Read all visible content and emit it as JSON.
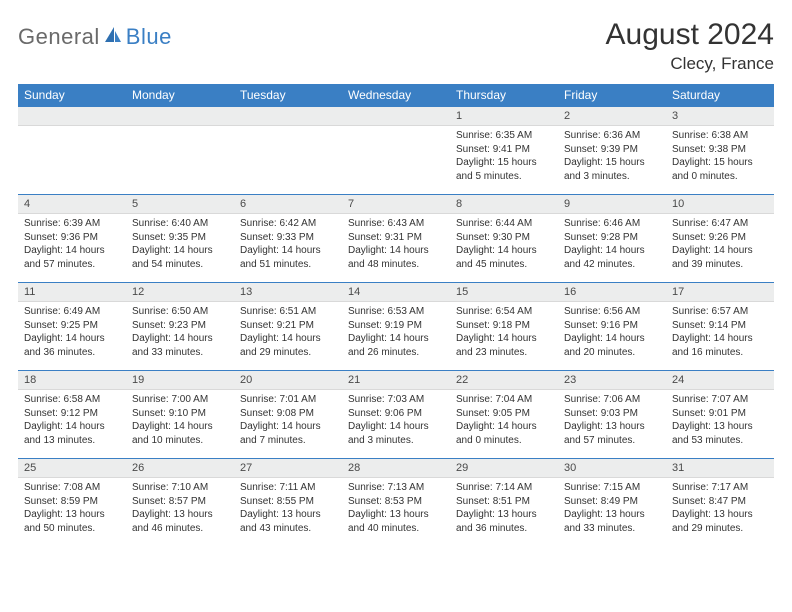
{
  "logo": {
    "part1": "General",
    "part2": "Blue"
  },
  "title": "August 2024",
  "location": "Clecy, France",
  "colors": {
    "accent": "#3a7fc4",
    "header_text": "#ffffff",
    "daynum_bg": "#eceded",
    "body_text": "#333333",
    "logo_gray": "#6a6a6a"
  },
  "day_names": [
    "Sunday",
    "Monday",
    "Tuesday",
    "Wednesday",
    "Thursday",
    "Friday",
    "Saturday"
  ],
  "weeks": [
    [
      {
        "n": "",
        "sr": "",
        "ss": "",
        "dl": ""
      },
      {
        "n": "",
        "sr": "",
        "ss": "",
        "dl": ""
      },
      {
        "n": "",
        "sr": "",
        "ss": "",
        "dl": ""
      },
      {
        "n": "",
        "sr": "",
        "ss": "",
        "dl": ""
      },
      {
        "n": "1",
        "sr": "6:35 AM",
        "ss": "9:41 PM",
        "dl": "15 hours and 5 minutes."
      },
      {
        "n": "2",
        "sr": "6:36 AM",
        "ss": "9:39 PM",
        "dl": "15 hours and 3 minutes."
      },
      {
        "n": "3",
        "sr": "6:38 AM",
        "ss": "9:38 PM",
        "dl": "15 hours and 0 minutes."
      }
    ],
    [
      {
        "n": "4",
        "sr": "6:39 AM",
        "ss": "9:36 PM",
        "dl": "14 hours and 57 minutes."
      },
      {
        "n": "5",
        "sr": "6:40 AM",
        "ss": "9:35 PM",
        "dl": "14 hours and 54 minutes."
      },
      {
        "n": "6",
        "sr": "6:42 AM",
        "ss": "9:33 PM",
        "dl": "14 hours and 51 minutes."
      },
      {
        "n": "7",
        "sr": "6:43 AM",
        "ss": "9:31 PM",
        "dl": "14 hours and 48 minutes."
      },
      {
        "n": "8",
        "sr": "6:44 AM",
        "ss": "9:30 PM",
        "dl": "14 hours and 45 minutes."
      },
      {
        "n": "9",
        "sr": "6:46 AM",
        "ss": "9:28 PM",
        "dl": "14 hours and 42 minutes."
      },
      {
        "n": "10",
        "sr": "6:47 AM",
        "ss": "9:26 PM",
        "dl": "14 hours and 39 minutes."
      }
    ],
    [
      {
        "n": "11",
        "sr": "6:49 AM",
        "ss": "9:25 PM",
        "dl": "14 hours and 36 minutes."
      },
      {
        "n": "12",
        "sr": "6:50 AM",
        "ss": "9:23 PM",
        "dl": "14 hours and 33 minutes."
      },
      {
        "n": "13",
        "sr": "6:51 AM",
        "ss": "9:21 PM",
        "dl": "14 hours and 29 minutes."
      },
      {
        "n": "14",
        "sr": "6:53 AM",
        "ss": "9:19 PM",
        "dl": "14 hours and 26 minutes."
      },
      {
        "n": "15",
        "sr": "6:54 AM",
        "ss": "9:18 PM",
        "dl": "14 hours and 23 minutes."
      },
      {
        "n": "16",
        "sr": "6:56 AM",
        "ss": "9:16 PM",
        "dl": "14 hours and 20 minutes."
      },
      {
        "n": "17",
        "sr": "6:57 AM",
        "ss": "9:14 PM",
        "dl": "14 hours and 16 minutes."
      }
    ],
    [
      {
        "n": "18",
        "sr": "6:58 AM",
        "ss": "9:12 PM",
        "dl": "14 hours and 13 minutes."
      },
      {
        "n": "19",
        "sr": "7:00 AM",
        "ss": "9:10 PM",
        "dl": "14 hours and 10 minutes."
      },
      {
        "n": "20",
        "sr": "7:01 AM",
        "ss": "9:08 PM",
        "dl": "14 hours and 7 minutes."
      },
      {
        "n": "21",
        "sr": "7:03 AM",
        "ss": "9:06 PM",
        "dl": "14 hours and 3 minutes."
      },
      {
        "n": "22",
        "sr": "7:04 AM",
        "ss": "9:05 PM",
        "dl": "14 hours and 0 minutes."
      },
      {
        "n": "23",
        "sr": "7:06 AM",
        "ss": "9:03 PM",
        "dl": "13 hours and 57 minutes."
      },
      {
        "n": "24",
        "sr": "7:07 AM",
        "ss": "9:01 PM",
        "dl": "13 hours and 53 minutes."
      }
    ],
    [
      {
        "n": "25",
        "sr": "7:08 AM",
        "ss": "8:59 PM",
        "dl": "13 hours and 50 minutes."
      },
      {
        "n": "26",
        "sr": "7:10 AM",
        "ss": "8:57 PM",
        "dl": "13 hours and 46 minutes."
      },
      {
        "n": "27",
        "sr": "7:11 AM",
        "ss": "8:55 PM",
        "dl": "13 hours and 43 minutes."
      },
      {
        "n": "28",
        "sr": "7:13 AM",
        "ss": "8:53 PM",
        "dl": "13 hours and 40 minutes."
      },
      {
        "n": "29",
        "sr": "7:14 AM",
        "ss": "8:51 PM",
        "dl": "13 hours and 36 minutes."
      },
      {
        "n": "30",
        "sr": "7:15 AM",
        "ss": "8:49 PM",
        "dl": "13 hours and 33 minutes."
      },
      {
        "n": "31",
        "sr": "7:17 AM",
        "ss": "8:47 PM",
        "dl": "13 hours and 29 minutes."
      }
    ]
  ],
  "labels": {
    "sunrise": "Sunrise:",
    "sunset": "Sunset:",
    "daylight": "Daylight:"
  }
}
